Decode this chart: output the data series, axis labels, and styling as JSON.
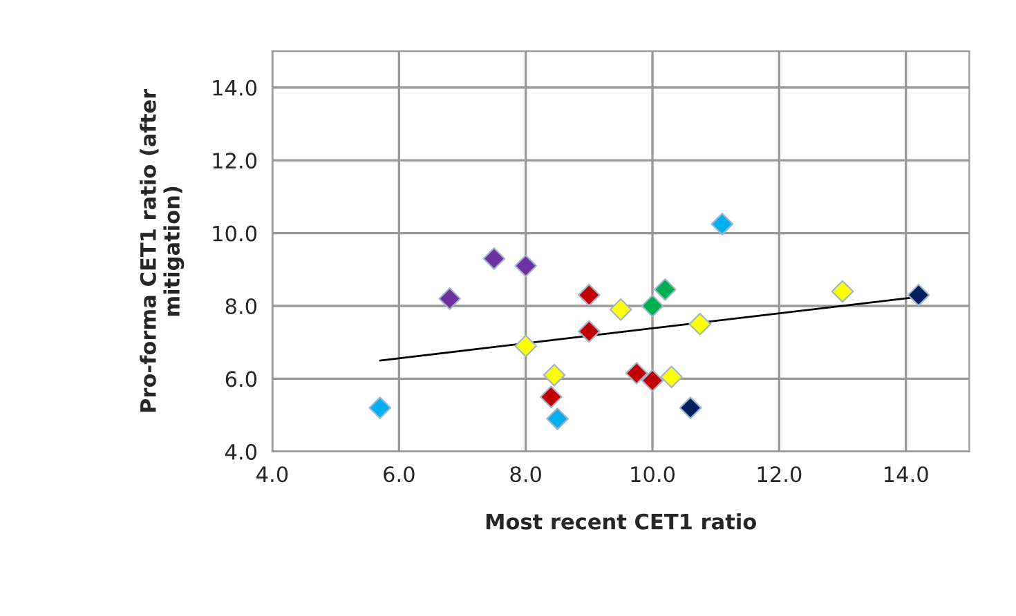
{
  "chart_data": {
    "type": "scatter",
    "xlabel": "Most recent CET1 ratio",
    "ylabel": "Pro-forma CET1 ratio (after\nmitigation)",
    "xlim": [
      4,
      15
    ],
    "ylim": [
      4,
      15
    ],
    "xticks": [
      {
        "value": 4,
        "label": "4.0"
      },
      {
        "value": 6,
        "label": "6.0"
      },
      {
        "value": 8,
        "label": "8.0"
      },
      {
        "value": 10,
        "label": "10.0"
      },
      {
        "value": 12,
        "label": "12.0"
      },
      {
        "value": 14,
        "label": "14.0"
      }
    ],
    "yticks": [
      {
        "value": 4,
        "label": "4.0"
      },
      {
        "value": 6,
        "label": "6.0"
      },
      {
        "value": 8,
        "label": "8.0"
      },
      {
        "value": 10,
        "label": "10.0"
      },
      {
        "value": 12,
        "label": "12.0"
      },
      {
        "value": 14,
        "label": "14.0"
      }
    ],
    "grid": true,
    "marker": "diamond",
    "series": [
      {
        "color": "#00b0f0",
        "x": [
          5.7,
          8.5,
          11.1
        ],
        "values": [
          5.2,
          4.9,
          10.25
        ]
      },
      {
        "color": "#7030a0",
        "x": [
          6.8,
          7.5,
          8.0
        ],
        "values": [
          8.2,
          9.3,
          9.1
        ]
      },
      {
        "color": "#c00000",
        "x": [
          9.0,
          9.0,
          8.4,
          9.75,
          10.0
        ],
        "values": [
          8.3,
          7.3,
          5.5,
          6.15,
          5.95
        ]
      },
      {
        "color": "#ffff00",
        "x": [
          8.0,
          8.45,
          9.5,
          10.75,
          10.3,
          13.0
        ],
        "values": [
          6.9,
          6.1,
          7.9,
          7.5,
          6.05,
          8.4
        ]
      },
      {
        "color": "#00b050",
        "x": [
          10.0,
          10.2
        ],
        "values": [
          8.0,
          8.45
        ]
      },
      {
        "color": "#002060",
        "x": [
          10.6,
          14.2
        ],
        "values": [
          5.2,
          8.3
        ]
      },
      {
        "type": "line",
        "color": "#000000",
        "marker": "none",
        "x": [
          5.7,
          14.2
        ],
        "values": [
          6.5,
          8.25
        ]
      }
    ]
  }
}
